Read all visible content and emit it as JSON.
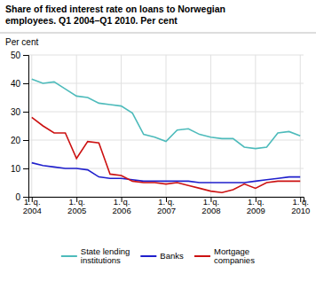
{
  "chart_data": {
    "type": "line",
    "title": "Share of fixed interest rate on loans to Norwegian\nemployees. Q1 2004–Q1 2010. Per cent",
    "ylabel": "Per cent",
    "categories": [
      "1. q.\n2004",
      null,
      null,
      null,
      "1. q.\n2005",
      null,
      null,
      null,
      "1. q.\n2006",
      null,
      null,
      null,
      "1. q.\n2007",
      null,
      null,
      null,
      "1. q.\n2008",
      null,
      null,
      null,
      "1. q.\n2009",
      null,
      null,
      null,
      "1. q.\n2010"
    ],
    "series": [
      {
        "name": "State lending\ninstitutions",
        "color": "#4DBBBB",
        "values": [
          41.5,
          40.0,
          40.5,
          38.0,
          35.5,
          35.0,
          33.0,
          32.5,
          32.0,
          29.5,
          22.0,
          21.0,
          19.5,
          23.5,
          24.0,
          22.0,
          21.0,
          20.5,
          20.5,
          17.5,
          17.0,
          17.5,
          22.5,
          23.0,
          21.5
        ]
      },
      {
        "name": "Banks",
        "color": "#1F1FCC",
        "values": [
          12.0,
          11.0,
          10.5,
          10.0,
          10.0,
          9.5,
          7.0,
          6.5,
          6.5,
          6.0,
          5.5,
          5.5,
          5.5,
          5.5,
          5.5,
          5.0,
          5.0,
          5.0,
          5.0,
          5.0,
          5.5,
          6.0,
          6.5,
          7.0,
          7.0
        ]
      },
      {
        "name": "Mortgage\ncompanies",
        "color": "#CC1111",
        "values": [
          28.0,
          25.0,
          22.5,
          22.5,
          13.5,
          19.5,
          19.0,
          8.0,
          7.5,
          5.5,
          5.0,
          5.0,
          4.5,
          5.0,
          4.0,
          3.0,
          2.0,
          1.5,
          2.5,
          4.5,
          3.0,
          5.0,
          5.5,
          5.5,
          5.5
        ]
      }
    ],
    "ylim": [
      0,
      50
    ],
    "yticks": [
      0,
      10,
      20,
      30,
      40,
      50
    ],
    "grid": true,
    "legend": "bottom"
  }
}
